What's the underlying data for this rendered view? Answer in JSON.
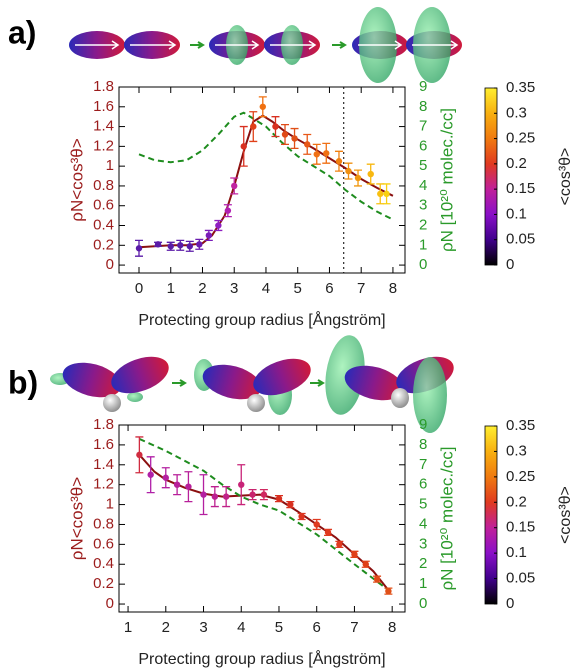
{
  "chart_data": [
    {
      "type": "scatter",
      "label": "a)",
      "xlabel": "Protecting group radius [Ångström]",
      "ylabel": "ρN<cos³θ>",
      "y2label": "ρN [10²⁰ molec./cc]",
      "xlim": [
        -0.63,
        8.38
      ],
      "xticks": [
        0,
        1,
        2,
        3,
        4,
        5,
        6,
        7,
        8
      ],
      "ylim": [
        -0.08,
        1.8
      ],
      "yticks": [
        0,
        0.2,
        0.4,
        0.6,
        0.8,
        1,
        1.2,
        1.4,
        1.6,
        1.8
      ],
      "y2lim": [
        -0.4,
        9
      ],
      "y2ticks": [
        0,
        1,
        2,
        3,
        4,
        5,
        6,
        7,
        8,
        9
      ],
      "vlines": [
        6.45
      ],
      "series": [
        {
          "type": "errorbar",
          "x": [
            0,
            0.6,
            1.0,
            1.3,
            1.6,
            1.9,
            2.2,
            2.5,
            2.8,
            3.0,
            3.3,
            3.6,
            3.9,
            4.3,
            4.6,
            4.9,
            5.3,
            5.6,
            5.9,
            6.3,
            6.6,
            6.9,
            7.3,
            7.6,
            7.8
          ],
          "values": [
            0.17,
            0.21,
            0.19,
            0.2,
            0.19,
            0.21,
            0.3,
            0.4,
            0.55,
            0.8,
            1.2,
            1.4,
            1.6,
            1.4,
            1.32,
            1.28,
            1.22,
            1.12,
            1.13,
            1.05,
            0.95,
            0.88,
            0.92,
            0.72,
            0.72
          ],
          "errors": [
            0.08,
            0.02,
            0.04,
            0.05,
            0.05,
            0.05,
            0.05,
            0.05,
            0.06,
            0.08,
            0.2,
            0.15,
            0.1,
            0.1,
            0.1,
            0.1,
            0.1,
            0.1,
            0.1,
            0.1,
            0.08,
            0.08,
            0.1,
            0.1,
            0.1
          ],
          "colors": [
            "#5a1aa8",
            "#5a1aa8",
            "#5a1aa8",
            "#5a1aa8",
            "#5a1aa8",
            "#6a1cb0",
            "#7a1cb8",
            "#8f1ec0",
            "#b020b0",
            "#c024a0",
            "#d83020",
            "#e04018",
            "#f07010",
            "#d83020",
            "#e04a18",
            "#e05018",
            "#e85818",
            "#f07014",
            "#f07014",
            "#f08010",
            "#f09010",
            "#f09810",
            "#f8b810",
            "#f8c010",
            "#f8d010"
          ]
        },
        {
          "type": "line",
          "color": "#8b1010",
          "x": [
            0,
            1,
            1.5,
            2,
            2.3,
            2.7,
            3,
            3.3,
            3.6,
            3.9,
            4.2,
            4.6,
            5,
            5.5,
            6,
            6.5,
            7,
            7.5,
            8
          ],
          "values": [
            0.18,
            0.2,
            0.2,
            0.22,
            0.3,
            0.5,
            0.8,
            1.15,
            1.45,
            1.51,
            1.45,
            1.35,
            1.27,
            1.18,
            1.08,
            0.98,
            0.87,
            0.78,
            0.7
          ]
        },
        {
          "type": "line",
          "axis": "y2",
          "color": "#1e8c1e",
          "dash": true,
          "x": [
            0,
            0.5,
            1,
            1.5,
            2,
            2.5,
            3,
            3.3,
            3.6,
            4,
            4.5,
            5,
            5.5,
            6,
            6.5,
            7,
            7.5,
            8
          ],
          "values": [
            5.6,
            5.3,
            5.2,
            5.3,
            5.8,
            6.6,
            7.5,
            7.7,
            7.4,
            7.0,
            6.2,
            5.5,
            5.0,
            4.5,
            3.8,
            3.2,
            2.7,
            2.3
          ]
        }
      ],
      "colorbar": {
        "label": "<cos³θ>",
        "lim": [
          0,
          0.35
        ],
        "ticks": [
          0,
          0.05,
          0.1,
          0.15,
          0.2,
          0.25,
          0.3,
          0.35
        ],
        "colors": [
          "#000000",
          "#40008c",
          "#8a10c8",
          "#c0209a",
          "#e03a20",
          "#f07a10",
          "#f8b010",
          "#ffee30"
        ]
      }
    },
    {
      "type": "scatter",
      "label": "b)",
      "xlabel": "Protecting group radius [Ångström]",
      "ylabel": "ρN<cos³θ>",
      "y2label": "ρN [10²⁰ molec./cc]",
      "xlim": [
        0.76,
        8.34
      ],
      "xticks": [
        1,
        2,
        3,
        4,
        5,
        6,
        7,
        8
      ],
      "ylim": [
        -0.08,
        1.8
      ],
      "yticks": [
        0,
        0.2,
        0.4,
        0.6,
        0.8,
        1,
        1.2,
        1.4,
        1.6,
        1.8
      ],
      "y2lim": [
        -0.4,
        9
      ],
      "y2ticks": [
        0,
        1,
        2,
        3,
        4,
        5,
        6,
        7,
        8,
        9
      ],
      "series": [
        {
          "type": "errorbar",
          "x": [
            1.3,
            1.6,
            2.0,
            2.3,
            2.6,
            3.0,
            3.3,
            3.6,
            4.0,
            4.3,
            4.6,
            5.0,
            5.3,
            5.6,
            6.0,
            6.3,
            6.6,
            7.0,
            7.3,
            7.6,
            7.9
          ],
          "values": [
            1.5,
            1.3,
            1.27,
            1.2,
            1.18,
            1.1,
            1.08,
            1.08,
            1.2,
            1.1,
            1.1,
            1.06,
            1.0,
            0.88,
            0.8,
            0.72,
            0.6,
            0.5,
            0.4,
            0.25,
            0.13
          ],
          "errors": [
            0.18,
            0.18,
            0.1,
            0.1,
            0.15,
            0.2,
            0.1,
            0.1,
            0.2,
            0.05,
            0.05,
            0.03,
            0.03,
            0.03,
            0.05,
            0.03,
            0.03,
            0.03,
            0.03,
            0.03,
            0.03
          ],
          "colors": [
            "#d02c40",
            "#b020a8",
            "#b420a0",
            "#b8209a",
            "#b8209a",
            "#b420a0",
            "#bc2090",
            "#c02288",
            "#c82478",
            "#c8246e",
            "#d02860",
            "#d83020",
            "#d83020",
            "#dc3420",
            "#e03a20",
            "#e03a20",
            "#e03a20",
            "#e04018",
            "#e04018",
            "#e04a18",
            "#e05018"
          ]
        },
        {
          "type": "line",
          "color": "#8b1010",
          "x": [
            1.3,
            1.7,
            2,
            2.5,
            3,
            3.5,
            4,
            4.5,
            5,
            5.5,
            6,
            6.5,
            7,
            7.5,
            7.9
          ],
          "values": [
            1.5,
            1.33,
            1.25,
            1.17,
            1.11,
            1.08,
            1.09,
            1.1,
            1.05,
            0.93,
            0.8,
            0.67,
            0.5,
            0.33,
            0.14
          ]
        },
        {
          "type": "line",
          "axis": "y2",
          "color": "#1e8c1e",
          "dash": true,
          "x": [
            1.3,
            2,
            3,
            3.5,
            4,
            4.5,
            5,
            6,
            7,
            7.9
          ],
          "values": [
            8.3,
            7.7,
            6.7,
            6.0,
            5.4,
            5.0,
            4.7,
            3.5,
            2.0,
            0.7
          ]
        }
      ],
      "colorbar": {
        "label": "<cos³θ>",
        "lim": [
          0,
          0.35
        ],
        "ticks": [
          0,
          0.05,
          0.1,
          0.15,
          0.2,
          0.25,
          0.3,
          0.35
        ],
        "colors": [
          "#000000",
          "#40008c",
          "#8a10c8",
          "#c0209a",
          "#e03a20",
          "#f07a10",
          "#f8b010",
          "#ffee30"
        ]
      }
    }
  ]
}
